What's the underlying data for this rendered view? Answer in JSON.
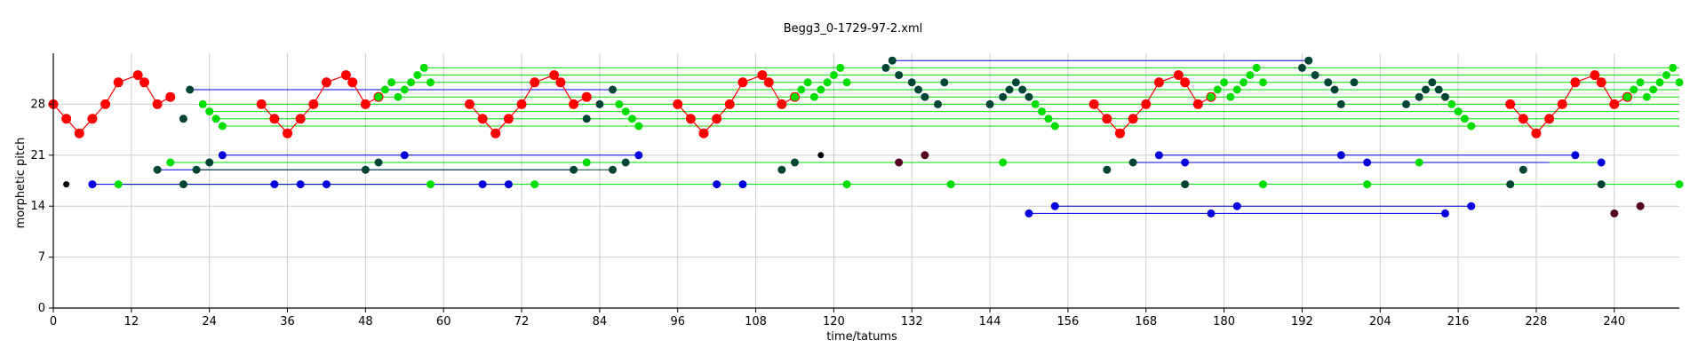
{
  "chart_data": {
    "type": "scatter",
    "title": "Begg3_0-1729-97-2.xml",
    "xlabel": "time/tatums",
    "ylabel": "morphetic pitch",
    "xlim": [
      0,
      250
    ],
    "ylim": [
      0,
      35
    ],
    "xticks": [
      0,
      12,
      24,
      36,
      48,
      60,
      72,
      84,
      96,
      108,
      120,
      132,
      144,
      156,
      168,
      180,
      192,
      204,
      216,
      228,
      240
    ],
    "yticks": [
      0,
      7,
      14,
      21,
      28
    ],
    "grid": true,
    "colors": {
      "red": "#ff0000",
      "green": "#00dd00",
      "blue": "#0000dd",
      "dark": "#004433",
      "black": "#000000",
      "maroon": "#550022"
    },
    "series": [
      {
        "color": "red",
        "points": [
          [
            0,
            28
          ],
          [
            2,
            26
          ],
          [
            4,
            24
          ],
          [
            6,
            26
          ],
          [
            8,
            28
          ],
          [
            10,
            31
          ],
          [
            13,
            32
          ],
          [
            14,
            31
          ],
          [
            16,
            28
          ],
          [
            18,
            29
          ],
          [
            32,
            28
          ],
          [
            34,
            26
          ],
          [
            36,
            24
          ],
          [
            38,
            26
          ],
          [
            40,
            28
          ],
          [
            42,
            31
          ],
          [
            45,
            32
          ],
          [
            46,
            31
          ],
          [
            48,
            28
          ],
          [
            50,
            29
          ],
          [
            64,
            28
          ],
          [
            66,
            26
          ],
          [
            68,
            24
          ],
          [
            70,
            26
          ],
          [
            72,
            28
          ],
          [
            74,
            31
          ],
          [
            77,
            32
          ],
          [
            78,
            31
          ],
          [
            80,
            28
          ],
          [
            82,
            29
          ],
          [
            96,
            28
          ],
          [
            98,
            26
          ],
          [
            100,
            24
          ],
          [
            102,
            26
          ],
          [
            104,
            28
          ],
          [
            106,
            31
          ],
          [
            109,
            32
          ],
          [
            110,
            31
          ],
          [
            112,
            28
          ],
          [
            114,
            29
          ],
          [
            160,
            28
          ],
          [
            162,
            26
          ],
          [
            164,
            24
          ],
          [
            166,
            26
          ],
          [
            168,
            28
          ],
          [
            170,
            31
          ],
          [
            173,
            32
          ],
          [
            174,
            31
          ],
          [
            176,
            28
          ],
          [
            178,
            29
          ],
          [
            224,
            28
          ],
          [
            226,
            26
          ],
          [
            228,
            24
          ],
          [
            230,
            26
          ],
          [
            232,
            28
          ],
          [
            234,
            31
          ],
          [
            237,
            32
          ],
          [
            238,
            31
          ],
          [
            240,
            28
          ],
          [
            242,
            29
          ]
        ],
        "groups": [
          [
            0,
            10
          ],
          [
            10,
            20
          ],
          [
            20,
            30
          ],
          [
            30,
            40
          ],
          [
            40,
            50
          ],
          [
            50,
            60
          ]
        ]
      },
      {
        "color": "green",
        "points": [
          [
            10,
            17
          ],
          [
            18,
            20
          ],
          [
            23,
            28
          ],
          [
            24,
            27
          ],
          [
            25,
            26
          ],
          [
            26,
            25
          ],
          [
            50,
            29
          ],
          [
            51,
            30
          ],
          [
            52,
            31
          ],
          [
            53,
            29
          ],
          [
            54,
            30
          ],
          [
            55,
            31
          ],
          [
            56,
            32
          ],
          [
            57,
            33
          ],
          [
            58,
            31
          ],
          [
            58,
            17
          ],
          [
            74,
            17
          ],
          [
            82,
            20
          ],
          [
            87,
            28
          ],
          [
            88,
            27
          ],
          [
            89,
            26
          ],
          [
            90,
            25
          ],
          [
            114,
            29
          ],
          [
            115,
            30
          ],
          [
            116,
            31
          ],
          [
            117,
            29
          ],
          [
            118,
            30
          ],
          [
            119,
            31
          ],
          [
            120,
            32
          ],
          [
            121,
            33
          ],
          [
            122,
            31
          ],
          [
            122,
            17
          ],
          [
            138,
            17
          ],
          [
            146,
            20
          ],
          [
            151,
            28
          ],
          [
            152,
            27
          ],
          [
            153,
            26
          ],
          [
            154,
            25
          ],
          [
            178,
            29
          ],
          [
            179,
            30
          ],
          [
            180,
            31
          ],
          [
            181,
            29
          ],
          [
            182,
            30
          ],
          [
            183,
            31
          ],
          [
            184,
            32
          ],
          [
            185,
            33
          ],
          [
            186,
            31
          ],
          [
            186,
            17
          ],
          [
            202,
            17
          ],
          [
            210,
            20
          ],
          [
            215,
            28
          ],
          [
            216,
            27
          ],
          [
            217,
            26
          ],
          [
            218,
            25
          ],
          [
            242,
            29
          ],
          [
            243,
            30
          ],
          [
            244,
            31
          ],
          [
            245,
            29
          ],
          [
            246,
            30
          ],
          [
            247,
            31
          ],
          [
            248,
            32
          ],
          [
            249,
            33
          ],
          [
            250,
            31
          ],
          [
            250,
            17
          ]
        ]
      },
      {
        "color": "blue",
        "points": [
          [
            6,
            17
          ],
          [
            34,
            17
          ],
          [
            38,
            17
          ],
          [
            42,
            17
          ],
          [
            66,
            17
          ],
          [
            70,
            17
          ],
          [
            26,
            21
          ],
          [
            54,
            21
          ],
          [
            90,
            21
          ],
          [
            102,
            17
          ],
          [
            106,
            17
          ],
          [
            150,
            13
          ],
          [
            154,
            14
          ],
          [
            170,
            21
          ],
          [
            174,
            20
          ],
          [
            178,
            13
          ],
          [
            182,
            14
          ],
          [
            198,
            21
          ],
          [
            202,
            20
          ],
          [
            214,
            13
          ],
          [
            218,
            14
          ],
          [
            234,
            21
          ],
          [
            238,
            20
          ]
        ]
      },
      {
        "color": "dark",
        "points": [
          [
            16,
            19
          ],
          [
            20,
            17
          ],
          [
            20,
            26
          ],
          [
            21,
            30
          ],
          [
            22,
            19
          ],
          [
            24,
            20
          ],
          [
            48,
            19
          ],
          [
            50,
            20
          ],
          [
            80,
            19
          ],
          [
            82,
            26
          ],
          [
            84,
            28
          ],
          [
            86,
            19
          ],
          [
            88,
            20
          ],
          [
            86,
            30
          ],
          [
            112,
            19
          ],
          [
            114,
            20
          ],
          [
            128,
            33
          ],
          [
            129,
            34
          ],
          [
            130,
            32
          ],
          [
            132,
            31
          ],
          [
            133,
            30
          ],
          [
            134,
            29
          ],
          [
            136,
            28
          ],
          [
            137,
            31
          ],
          [
            144,
            28
          ],
          [
            146,
            29
          ],
          [
            147,
            30
          ],
          [
            148,
            31
          ],
          [
            149,
            30
          ],
          [
            150,
            29
          ],
          [
            162,
            19
          ],
          [
            166,
            20
          ],
          [
            174,
            17
          ],
          [
            192,
            33
          ],
          [
            193,
            34
          ],
          [
            194,
            32
          ],
          [
            196,
            31
          ],
          [
            197,
            30
          ],
          [
            198,
            28
          ],
          [
            200,
            31
          ],
          [
            208,
            28
          ],
          [
            210,
            29
          ],
          [
            211,
            30
          ],
          [
            212,
            31
          ],
          [
            213,
            30
          ],
          [
            214,
            29
          ],
          [
            224,
            17
          ],
          [
            226,
            19
          ],
          [
            238,
            17
          ]
        ]
      },
      {
        "color": "black",
        "points": [
          [
            2,
            17
          ],
          [
            118,
            21
          ]
        ]
      },
      {
        "color": "maroon",
        "points": [
          [
            130,
            20
          ],
          [
            134,
            21
          ],
          [
            240,
            13
          ],
          [
            244,
            14
          ]
        ]
      }
    ],
    "lines": [
      {
        "color": "green",
        "from": [
          10,
          17
        ],
        "to": [
          250,
          17
        ]
      },
      {
        "color": "green",
        "from": [
          18,
          20
        ],
        "to": [
          146,
          20
        ]
      },
      {
        "color": "green",
        "from": [
          146,
          20
        ],
        "to": [
          238,
          20
        ]
      },
      {
        "color": "green",
        "from": [
          23,
          28
        ],
        "to": [
          250,
          28
        ]
      },
      {
        "color": "green",
        "from": [
          24,
          27
        ],
        "to": [
          250,
          27
        ]
      },
      {
        "color": "green",
        "from": [
          25,
          26
        ],
        "to": [
          250,
          26
        ]
      },
      {
        "color": "green",
        "from": [
          26,
          25
        ],
        "to": [
          250,
          25
        ]
      },
      {
        "color": "green",
        "from": [
          50,
          29
        ],
        "to": [
          250,
          29
        ]
      },
      {
        "color": "green",
        "from": [
          51,
          30
        ],
        "to": [
          250,
          30
        ]
      },
      {
        "color": "green",
        "from": [
          52,
          31
        ],
        "to": [
          250,
          31
        ]
      },
      {
        "color": "green",
        "from": [
          56,
          32
        ],
        "to": [
          250,
          32
        ]
      },
      {
        "color": "green",
        "from": [
          57,
          33
        ],
        "to": [
          250,
          33
        ]
      },
      {
        "color": "blue",
        "from": [
          6,
          17
        ],
        "to": [
          70,
          17
        ]
      },
      {
        "color": "blue",
        "from": [
          26,
          21
        ],
        "to": [
          90,
          21
        ]
      },
      {
        "color": "blue",
        "from": [
          16,
          19
        ],
        "to": [
          80,
          19
        ]
      },
      {
        "color": "blue",
        "from": [
          150,
          13
        ],
        "to": [
          214,
          13
        ]
      },
      {
        "color": "blue",
        "from": [
          154,
          14
        ],
        "to": [
          218,
          14
        ]
      },
      {
        "color": "blue",
        "from": [
          170,
          21
        ],
        "to": [
          234,
          21
        ]
      },
      {
        "color": "blue",
        "from": [
          166,
          20
        ],
        "to": [
          230,
          20
        ]
      },
      {
        "color": "blue",
        "from": [
          21,
          30
        ],
        "to": [
          86,
          30
        ]
      },
      {
        "color": "blue",
        "from": [
          129,
          34
        ],
        "to": [
          193,
          34
        ]
      },
      {
        "color": "dark",
        "from": [
          22,
          19
        ],
        "to": [
          86,
          19
        ]
      }
    ]
  }
}
